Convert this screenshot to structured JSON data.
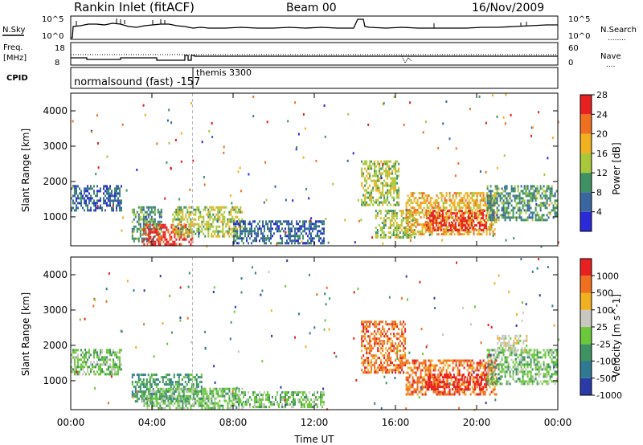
{
  "header": {
    "title": "Rankin Inlet (fitACF)",
    "beam": "Beam 00",
    "date": "16/Nov/2009"
  },
  "top_panels": {
    "nsky": {
      "left_label": "N.Sky",
      "right_label": "N.Search",
      "right_line_label": "........",
      "ticks_left": [
        "10^5",
        "10^0"
      ],
      "ticks_right": [
        "10^5",
        "10^0"
      ]
    },
    "freq": {
      "left_label_1": "Freq.",
      "left_label_2": "[MHz]",
      "ticks_left": [
        "18",
        "8"
      ],
      "ticks_right": [
        "60",
        "0"
      ],
      "right_label": "Nave",
      "right_line_label": "...."
    },
    "cpid": {
      "label": "CPID",
      "programs": [
        {
          "name": "normalsound (fast) -157",
          "start_hour": 0.0
        },
        {
          "name": "themis 3300",
          "start_hour": 6.0
        }
      ]
    }
  },
  "chart_data": [
    {
      "type": "heatmap",
      "title": "",
      "ylabel": "Slant Range [km]",
      "ylim": [
        180,
        4500
      ],
      "yticks": [
        1000,
        2000,
        3000,
        4000
      ],
      "xlim": [
        0,
        24
      ],
      "xticks": [
        0,
        4,
        8,
        12,
        16,
        20,
        24
      ],
      "colorbar": {
        "label": "Power [dB]",
        "ticks": [
          "4",
          "8",
          "12",
          "16",
          "20",
          "24",
          "28"
        ],
        "colors": [
          "#2a2ad8",
          "#3a66a0",
          "#3f9062",
          "#a8c83a",
          "#f0b020",
          "#f07020",
          "#e82020"
        ]
      },
      "regions": [
        {
          "t": [
            0.0,
            2.5
          ],
          "r": [
            1150,
            1900
          ],
          "level": 1
        },
        {
          "t": [
            3.0,
            4.5
          ],
          "r": [
            300,
            1300
          ],
          "level": 2
        },
        {
          "t": [
            3.5,
            6.0
          ],
          "r": [
            200,
            800
          ],
          "level": 6
        },
        {
          "t": [
            5.0,
            8.5
          ],
          "r": [
            400,
            1300
          ],
          "level": 3
        },
        {
          "t": [
            8.0,
            12.5
          ],
          "r": [
            200,
            900
          ],
          "level": 1
        },
        {
          "t": [
            14.3,
            16.2
          ],
          "r": [
            1300,
            2600
          ],
          "level": 3
        },
        {
          "t": [
            15.0,
            17.0
          ],
          "r": [
            400,
            1200
          ],
          "level": 3
        },
        {
          "t": [
            16.5,
            21.0
          ],
          "r": [
            500,
            1700
          ],
          "level": 4
        },
        {
          "t": [
            17.5,
            20.5
          ],
          "r": [
            600,
            1200
          ],
          "level": 6
        },
        {
          "t": [
            20.5,
            24.0
          ],
          "r": [
            900,
            1900
          ],
          "level": 2
        }
      ]
    },
    {
      "type": "heatmap",
      "title": "",
      "ylabel": "Slant Range [km]",
      "xlabel": "Time UT",
      "ylim": [
        180,
        4500
      ],
      "yticks": [
        1000,
        2000,
        3000,
        4000
      ],
      "xlim": [
        0,
        24
      ],
      "xticks": [
        0,
        4,
        8,
        12,
        16,
        20,
        24
      ],
      "xticklabels": [
        "00:00",
        "04:00",
        "08:00",
        "12:00",
        "16:00",
        "20:00",
        "00:00"
      ],
      "colorbar": {
        "label": "Velocity [m s^-1]",
        "ticks": [
          "1000",
          "500",
          "100",
          "25",
          "-25",
          "-100",
          "-500",
          "-1000"
        ],
        "colors": [
          "#2a3aa8",
          "#2f7a92",
          "#3f9262",
          "#6ac83a",
          "#c8c8c0",
          "#f0b020",
          "#f07020",
          "#e82020"
        ]
      },
      "regions": [
        {
          "t": [
            0.0,
            2.5
          ],
          "r": [
            1150,
            1900
          ],
          "level": 3
        },
        {
          "t": [
            3.0,
            6.5
          ],
          "r": [
            400,
            1200
          ],
          "level": 2
        },
        {
          "t": [
            3.5,
            8.5
          ],
          "r": [
            200,
            800
          ],
          "level": 3
        },
        {
          "t": [
            8.0,
            12.5
          ],
          "r": [
            200,
            700
          ],
          "level": 3
        },
        {
          "t": [
            14.3,
            16.5
          ],
          "r": [
            1200,
            2700
          ],
          "level": 6
        },
        {
          "t": [
            16.5,
            21.0
          ],
          "r": [
            600,
            1600
          ],
          "level": 6
        },
        {
          "t": [
            17.5,
            20.5
          ],
          "r": [
            700,
            1200
          ],
          "level": 7
        },
        {
          "t": [
            20.5,
            24.0
          ],
          "r": [
            900,
            1900
          ],
          "level": 3
        },
        {
          "t": [
            21.0,
            22.5
          ],
          "r": [
            1800,
            2300
          ],
          "level": 4
        }
      ]
    }
  ]
}
